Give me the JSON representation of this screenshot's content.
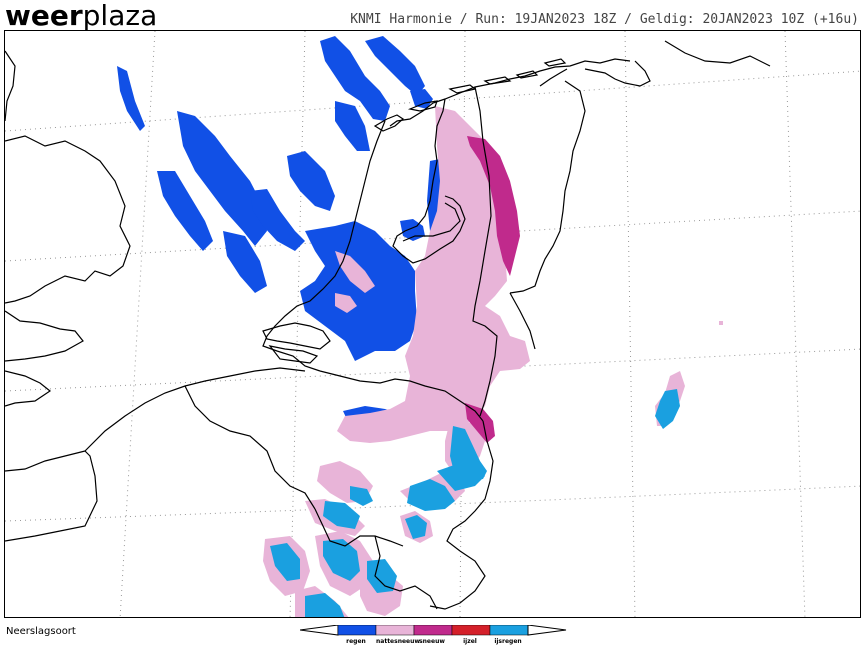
{
  "brand": {
    "name_bold": "weer",
    "name_light": "plaza"
  },
  "header": {
    "model": "KNMI Harmonie",
    "run": "Run: 19JAN2023 18Z",
    "valid": "Geldig: 20JAN2023 10Z (+16u)",
    "separator": " / "
  },
  "map": {
    "region": "Netherlands and surroundings",
    "colors": {
      "regen": "#1150e6",
      "natte_sneeuw": "#e8b4d8",
      "sneeuw": "#c02a8c",
      "ijzel": "#d4202a",
      "ijsregen": "#1aa0e0"
    }
  },
  "footer": {
    "label": "Neerslagsoort"
  },
  "legend": {
    "items": [
      {
        "label": "regen",
        "color": "#1150e6"
      },
      {
        "label": "nattesneeuw",
        "color": "#e8b4d8"
      },
      {
        "label": "sneeuw",
        "color": "#c02a8c"
      },
      {
        "label": "ijzel",
        "color": "#d4202a"
      },
      {
        "label": "ijsregen",
        "color": "#1aa0e0"
      }
    ]
  }
}
